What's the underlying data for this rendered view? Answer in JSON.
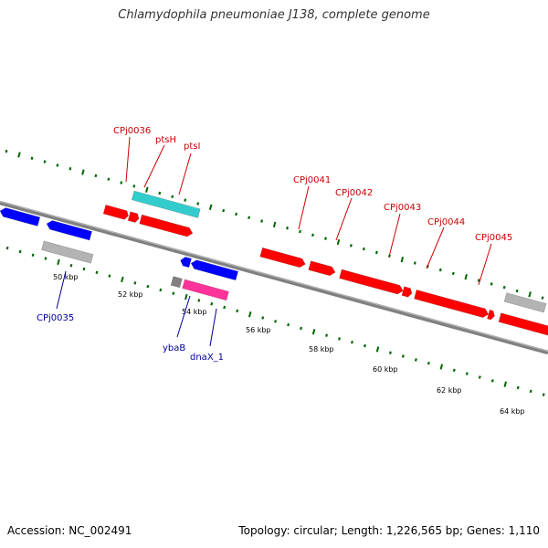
{
  "title": "Chlamydophila pneumoniae J138, complete genome",
  "accession": "Accession: NC_002491",
  "genome_info": "Topology: circular; Length: 1,226,565 bp; Genes: 1,110",
  "colors": {
    "forward_gene": "#ff0000",
    "reverse_gene": "#0000ff",
    "cyan_gene": "#33cccc",
    "pink_gene": "#ff3399",
    "gray_gene": "#b3b3b3",
    "dark_gray_gene": "#808080",
    "backbone": "#808080",
    "tick": "#006600",
    "top_label": "#cc0000",
    "bottom_label": "#000099"
  },
  "scale_labels": [
    "50 kbp",
    "52 kbp",
    "54 kbp",
    "56 kbp",
    "58 kbp",
    "60 kbp",
    "62 kbp",
    "64 kbp"
  ],
  "top_labels": [
    "CPj0036",
    "ptsH",
    "ptsI",
    "CPj0041",
    "CPj0042",
    "CPj0043",
    "CPj0044",
    "CPj0045"
  ],
  "bottom_labels": [
    "CPj0035",
    "ybaB",
    "dnaX_1"
  ]
}
